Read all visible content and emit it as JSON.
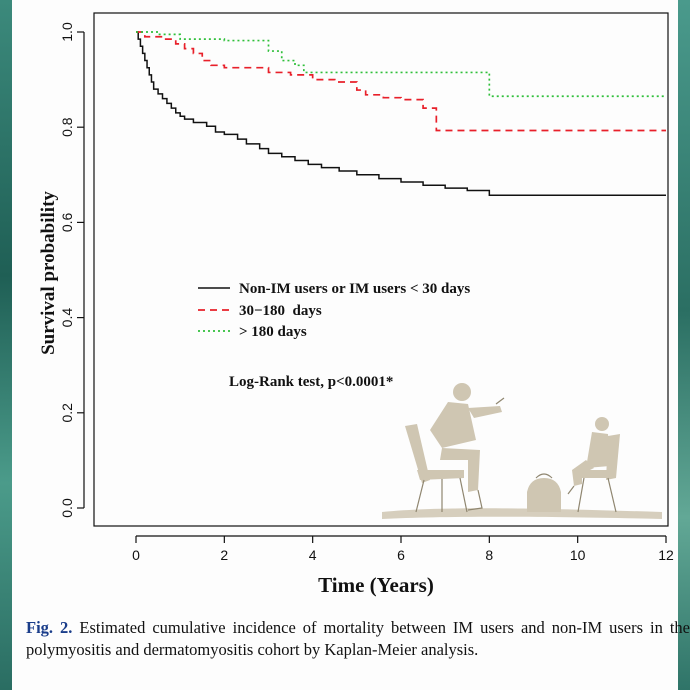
{
  "chart_data": {
    "type": "line",
    "title": "",
    "xlabel": "Time (Years)",
    "ylabel": "Survival probability",
    "xlim": [
      0,
      12
    ],
    "ylim": [
      0,
      1
    ],
    "xticks": [
      "0",
      "2",
      "4",
      "6",
      "8",
      "10",
      "12"
    ],
    "yticks": [
      "0.0",
      "0.2",
      "0.4",
      "0.6",
      "0.8",
      "1.0"
    ],
    "legend_position": "center-left",
    "annotation": "Log-Rank test, p<0.0001*",
    "series": [
      {
        "name": "Non-IM users or IM users < 30 days",
        "style": "solid",
        "color": "#111111",
        "x": [
          0,
          0.05,
          0.1,
          0.15,
          0.2,
          0.25,
          0.3,
          0.35,
          0.4,
          0.5,
          0.6,
          0.7,
          0.8,
          0.9,
          1.0,
          1.1,
          1.3,
          1.6,
          1.8,
          2.0,
          2.3,
          2.5,
          2.8,
          3.0,
          3.3,
          3.6,
          3.9,
          4.2,
          4.6,
          5.0,
          5.5,
          6.0,
          6.5,
          7.0,
          7.5,
          8.0,
          9.0,
          10.0,
          11.0,
          12.0
        ],
        "y": [
          1.0,
          0.985,
          0.97,
          0.955,
          0.94,
          0.925,
          0.91,
          0.895,
          0.88,
          0.87,
          0.86,
          0.85,
          0.84,
          0.83,
          0.823,
          0.817,
          0.81,
          0.802,
          0.79,
          0.785,
          0.775,
          0.765,
          0.755,
          0.745,
          0.738,
          0.73,
          0.722,
          0.715,
          0.708,
          0.7,
          0.692,
          0.685,
          0.678,
          0.672,
          0.667,
          0.657,
          0.657,
          0.657,
          0.657,
          0.657
        ]
      },
      {
        "name": "30−180  days",
        "style": "dashed",
        "color": "#e8202a",
        "x": [
          0,
          0.2,
          0.6,
          0.9,
          1.1,
          1.3,
          1.5,
          1.7,
          2.0,
          2.5,
          3.0,
          3.5,
          4.0,
          4.5,
          5.0,
          5.2,
          5.6,
          6.0,
          6.5,
          6.8,
          7.0,
          8.0,
          9.0,
          10.0,
          11.0,
          12.0
        ],
        "y": [
          1.0,
          0.99,
          0.985,
          0.975,
          0.965,
          0.955,
          0.94,
          0.93,
          0.925,
          0.925,
          0.915,
          0.91,
          0.9,
          0.895,
          0.878,
          0.868,
          0.862,
          0.858,
          0.84,
          0.793,
          0.793,
          0.793,
          0.793,
          0.793,
          0.793,
          0.793
        ]
      },
      {
        "name": "> 180 days",
        "style": "dotted",
        "color": "#2fbf3a",
        "x": [
          0,
          0.5,
          1.0,
          2.0,
          3.0,
          3.3,
          3.6,
          3.8,
          4.0,
          5.0,
          6.0,
          7.0,
          8.0,
          9.0,
          10.0,
          11.0,
          12.0
        ],
        "y": [
          1.0,
          0.995,
          0.985,
          0.982,
          0.96,
          0.94,
          0.93,
          0.915,
          0.915,
          0.915,
          0.915,
          0.915,
          0.865,
          0.865,
          0.865,
          0.865,
          0.865
        ]
      }
    ]
  },
  "caption": {
    "label": "Fig. 2.",
    "text": " Estimated cumulative incidence of mortality between IM users and non-IM users in the polymyositis and dermatomyositis cohort by Kaplan-Meier analysis."
  },
  "sticker": {
    "icon": "people-sitting-illustration-icon"
  }
}
